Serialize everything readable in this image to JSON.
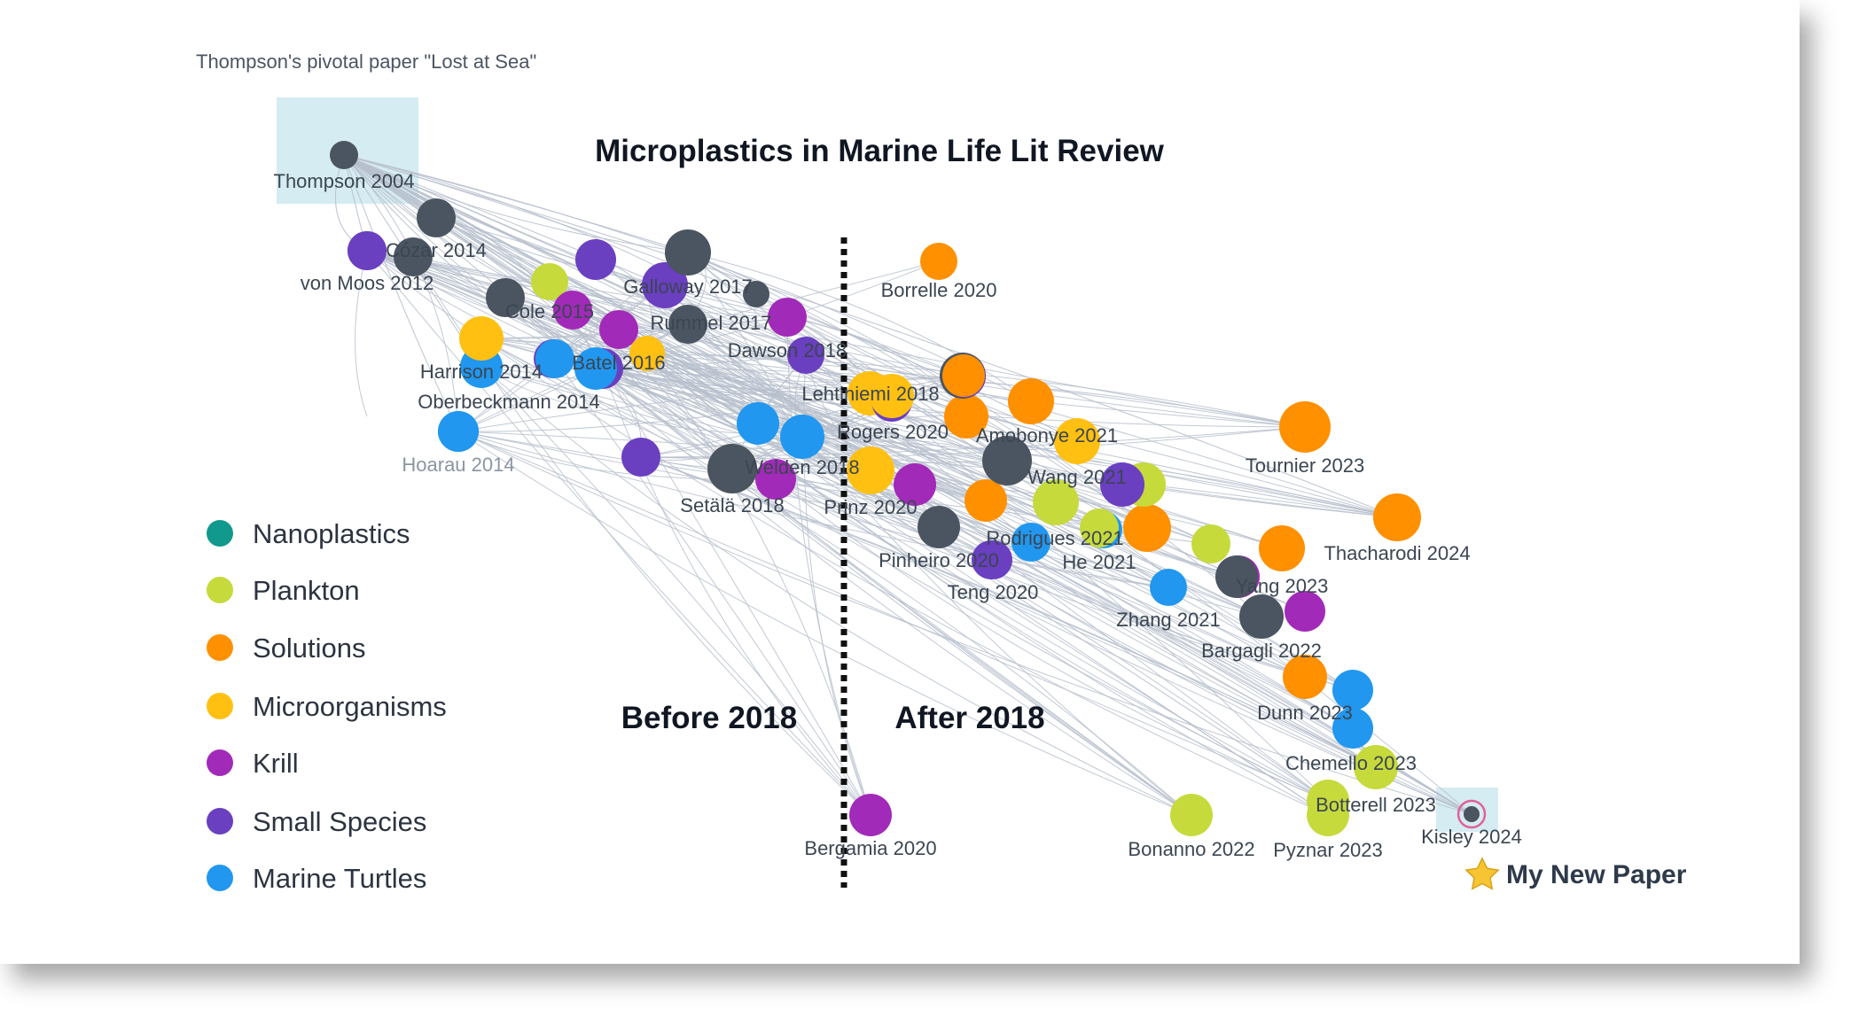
{
  "caption": "Thompson's pivotal paper \"Lost at Sea\"",
  "title": "Microplastics in Marine Life Lit Review",
  "sections": {
    "before": "Before 2018",
    "after": "After 2018"
  },
  "my_new_paper": {
    "icon": "star-icon",
    "label": "My New Paper"
  },
  "legend": [
    {
      "key": "nanoplastics",
      "label": "Nanoplastics",
      "color": "#11998e"
    },
    {
      "key": "plankton",
      "label": "Plankton",
      "color": "#c6da3c"
    },
    {
      "key": "solutions",
      "label": "Solutions",
      "color": "#ff9000"
    },
    {
      "key": "microorganisms",
      "label": "Microorganisms",
      "color": "#ffc012"
    },
    {
      "key": "krill",
      "label": "Krill",
      "color": "#a22ab8"
    },
    {
      "key": "small_species",
      "label": "Small Species",
      "color": "#6a3fc0"
    },
    {
      "key": "marine_turtles",
      "label": "Marine Turtles",
      "color": "#2197ef"
    }
  ],
  "colors": {
    "core": "#4a5561",
    "edge": "#b7c0cc",
    "highlight": "#d5ecf2",
    "divider": "#111111"
  },
  "papers": [
    {
      "label": "Thompson 2004",
      "category": "core",
      "highlight": true
    },
    {
      "label": "Cózar 2014",
      "category": "core"
    },
    {
      "label": "von Moos 2012",
      "category": "small_species"
    },
    {
      "label": "Cole 2015",
      "category": "core"
    },
    {
      "label": "Galloway 2017",
      "category": "core"
    },
    {
      "label": "Rummel 2017",
      "category": "core"
    },
    {
      "label": "Dawson 2018",
      "category": "krill"
    },
    {
      "label": "Harrison 2014",
      "category": "microorganisms"
    },
    {
      "label": "Batel 2016",
      "category": "marine_turtles"
    },
    {
      "label": "Oberbeckmann 2014",
      "category": "marine_turtles"
    },
    {
      "label": "Hoarau 2014",
      "category": "marine_turtles",
      "muted": true
    },
    {
      "label": "Setälä 2018",
      "category": "core"
    },
    {
      "label": "Welden 2018",
      "category": "marine_turtles"
    },
    {
      "label": "Borrelle 2020",
      "category": "solutions"
    },
    {
      "label": "Lehtiniemi 2018",
      "category": "microorganisms"
    },
    {
      "label": "Rogers 2020",
      "category": "solutions"
    },
    {
      "label": "Amobonye 2021",
      "category": "microorganisms"
    },
    {
      "label": "Prinz 2020",
      "category": "microorganisms"
    },
    {
      "label": "Wang 2021",
      "category": "small_species"
    },
    {
      "label": "Rodrigues 2021",
      "category": "marine_turtles"
    },
    {
      "label": "Pinheiro 2020",
      "category": "core"
    },
    {
      "label": "He 2021",
      "category": "plankton"
    },
    {
      "label": "Teng 2020",
      "category": "small_species"
    },
    {
      "label": "Tournier 2023",
      "category": "solutions"
    },
    {
      "label": "Thacharodi 2024",
      "category": "solutions"
    },
    {
      "label": "Yang 2023",
      "category": "core"
    },
    {
      "label": "Zhang 2021",
      "category": "marine_turtles"
    },
    {
      "label": "Bargagli 2022",
      "category": "core"
    },
    {
      "label": "Dunn 2023",
      "category": "solutions"
    },
    {
      "label": "Chemello 2023",
      "category": "plankton"
    },
    {
      "label": "Botterell 2023",
      "category": "plankton"
    },
    {
      "label": "Bergamia 2020",
      "category": "krill"
    },
    {
      "label": "Bonanno 2022",
      "category": "plankton"
    },
    {
      "label": "Pyznar 2023",
      "category": "plankton"
    },
    {
      "label": "Kisley 2024",
      "category": "core",
      "highlight": true,
      "is_new": true
    }
  ],
  "unlabeled_papers": [
    "core",
    "small_species",
    "plankton",
    "krill",
    "small_species",
    "marine_turtles",
    "small_species",
    "krill",
    "microorganisms",
    "small_species",
    "marine_turtles",
    "microorganisms",
    "small_species",
    "small_species",
    "krill",
    "krill",
    "microorganisms",
    "solutions",
    "core",
    "solutions",
    "krill",
    "solutions",
    "core",
    "solutions",
    "plankton",
    "plankton",
    "solutions",
    "marine_turtles",
    "krill",
    "marine_turtles",
    "small_species",
    "marine_turtles",
    "marine_turtles",
    "small_species",
    "core"
  ]
}
